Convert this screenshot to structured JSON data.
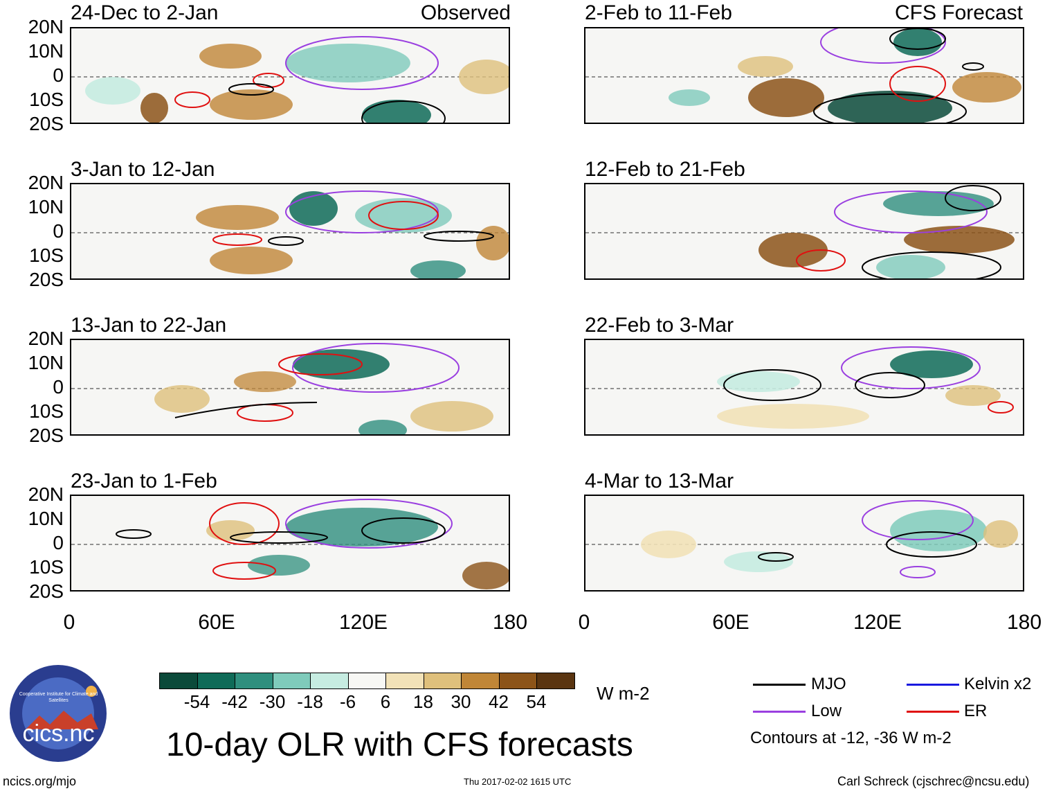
{
  "left_header_right": "Observed",
  "right_header_right": "CFS Forecast",
  "panels_left": [
    {
      "title": "24-Dec to 2-Jan"
    },
    {
      "title": "3-Jan to 12-Jan"
    },
    {
      "title": "13-Jan to 22-Jan"
    },
    {
      "title": "23-Jan to 1-Feb"
    }
  ],
  "panels_right": [
    {
      "title": "2-Feb to 11-Feb"
    },
    {
      "title": "12-Feb to 21-Feb"
    },
    {
      "title": "22-Feb to 3-Mar"
    },
    {
      "title": "4-Mar to 13-Mar"
    }
  ],
  "lat_labels": [
    "20N",
    "10N",
    "0",
    "10S",
    "20S"
  ],
  "lon_labels": [
    "0",
    "60E",
    "120E",
    "180"
  ],
  "colorbar": {
    "colors": [
      "#0b4a3a",
      "#0f6b58",
      "#2f8f7e",
      "#7fcbbb",
      "#c6ece1",
      "#f7f7f4",
      "#f2e2b8",
      "#dfc07c",
      "#c08637",
      "#8c5419",
      "#5a3511"
    ],
    "labels": [
      "-54",
      "-42",
      "-30",
      "-18",
      "-6",
      "6",
      "18",
      "30",
      "42",
      "54"
    ],
    "unit": "W m-2"
  },
  "title": "10-day OLR with CFS forecasts",
  "legend": {
    "items": [
      {
        "label": "MJO",
        "color": "#000000"
      },
      {
        "label": "Kelvin x2",
        "color": "#1a1adf"
      },
      {
        "label": "Low",
        "color": "#9a3fe0"
      },
      {
        "label": "ER",
        "color": "#e01010"
      }
    ],
    "note": "Contours at -12, -36 W m-2"
  },
  "logo_text": "cics.nc",
  "logo_ring_text": "Cooperative Institute for Climate and Satellites",
  "footer": {
    "left": "ncics.org/mjo",
    "center": "Thu 2017-02-02 1615 UTC",
    "right": "Carl Schreck (cjschrec@ncsu.edu)"
  }
}
